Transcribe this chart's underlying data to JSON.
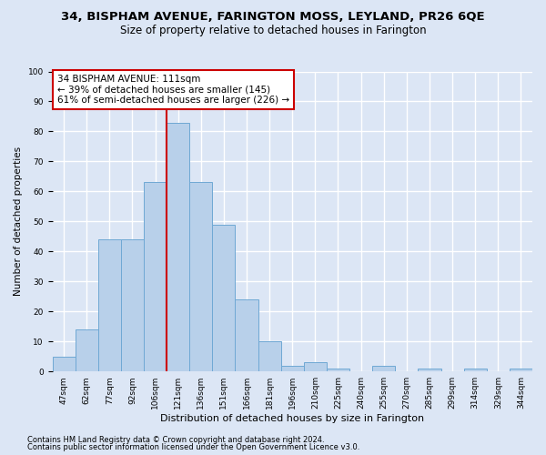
{
  "title1": "34, BISPHAM AVENUE, FARINGTON MOSS, LEYLAND, PR26 6QE",
  "title2": "Size of property relative to detached houses in Farington",
  "xlabel": "Distribution of detached houses by size in Farington",
  "ylabel": "Number of detached properties",
  "categories": [
    "47sqm",
    "62sqm",
    "77sqm",
    "92sqm",
    "106sqm",
    "121sqm",
    "136sqm",
    "151sqm",
    "166sqm",
    "181sqm",
    "196sqm",
    "210sqm",
    "225sqm",
    "240sqm",
    "255sqm",
    "270sqm",
    "285sqm",
    "299sqm",
    "314sqm",
    "329sqm",
    "344sqm"
  ],
  "values": [
    5,
    14,
    44,
    44,
    63,
    83,
    63,
    49,
    24,
    10,
    2,
    3,
    1,
    0,
    2,
    0,
    1,
    0,
    1,
    0,
    1
  ],
  "bar_color": "#b8d0ea",
  "bar_edge_color": "#6fa8d4",
  "vline_x": 4.5,
  "vline_color": "#cc0000",
  "annotation_text": "34 BISPHAM AVENUE: 111sqm\n← 39% of detached houses are smaller (145)\n61% of semi-detached houses are larger (226) →",
  "annotation_box_color": "white",
  "annotation_box_edge": "#cc0000",
  "ylim": [
    0,
    100
  ],
  "footer1": "Contains HM Land Registry data © Crown copyright and database right 2024.",
  "footer2": "Contains public sector information licensed under the Open Government Licence v3.0.",
  "background_color": "#dce6f5",
  "plot_bg_color": "#dce6f5",
  "grid_color": "white",
  "title1_fontsize": 9.5,
  "title2_fontsize": 8.5,
  "tick_fontsize": 6.5,
  "ylabel_fontsize": 7.5,
  "xlabel_fontsize": 8,
  "annotation_fontsize": 7.5,
  "footer_fontsize": 6
}
